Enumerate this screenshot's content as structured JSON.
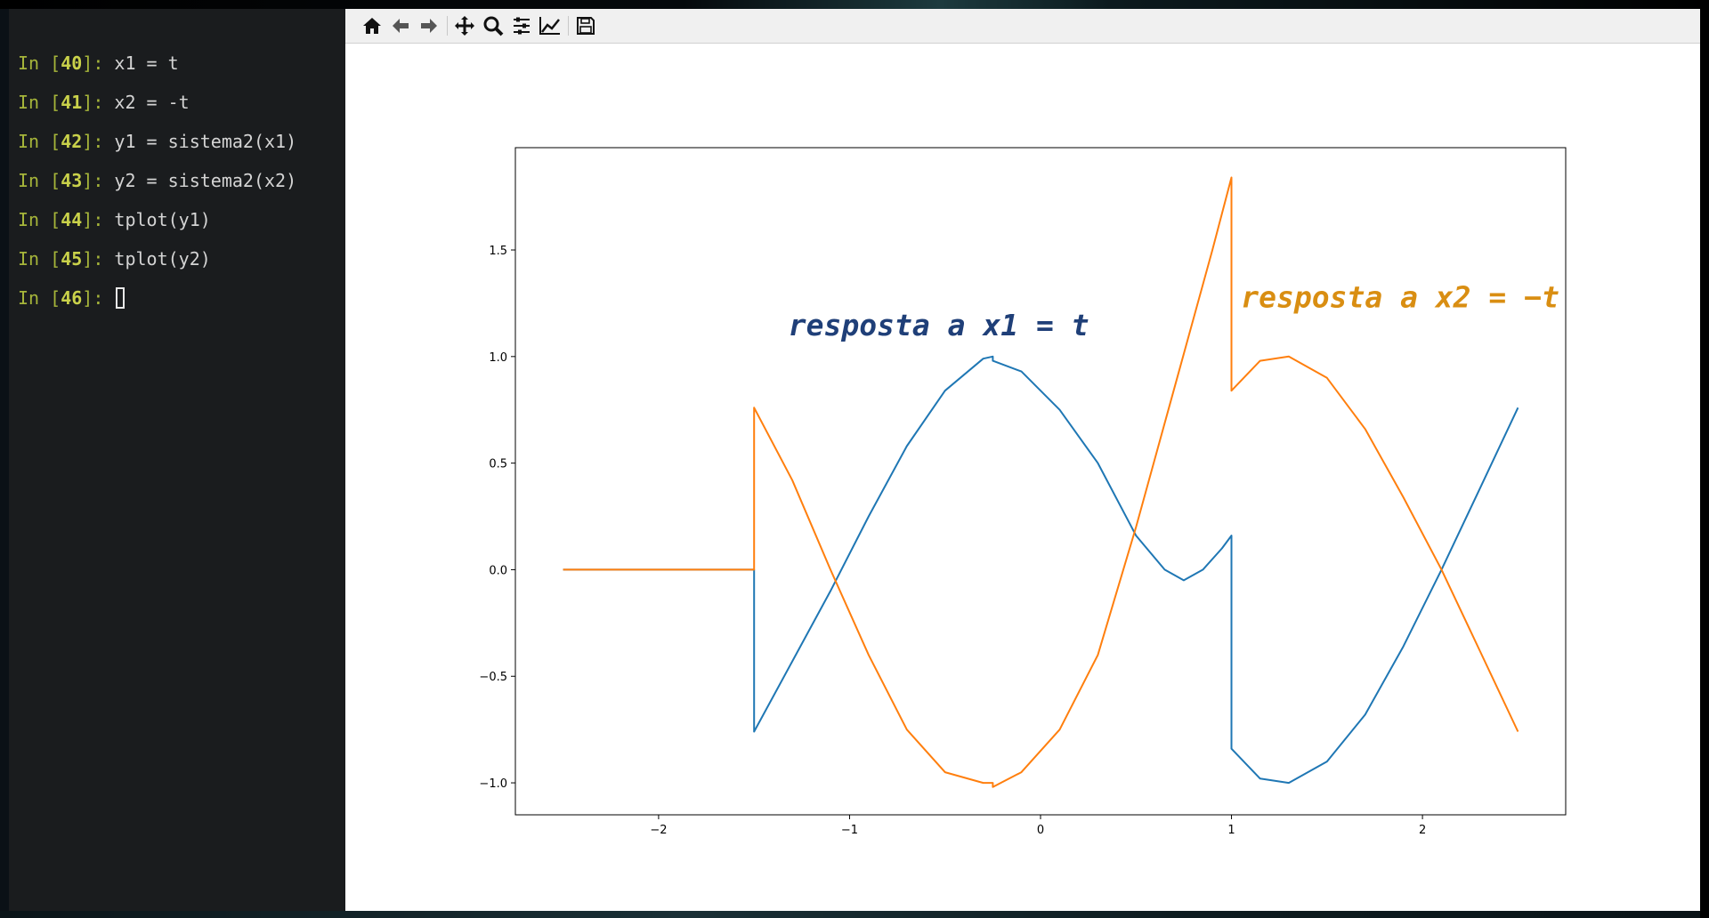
{
  "terminal": {
    "lines": [
      {
        "prompt": "In",
        "num": "40",
        "code": "x1 = t"
      },
      {
        "prompt": "In",
        "num": "41",
        "code": "x2 = -t"
      },
      {
        "prompt": "In",
        "num": "42",
        "code": "y1 = sistema2(x1)"
      },
      {
        "prompt": "In",
        "num": "43",
        "code": "y2 = sistema2(x2)"
      },
      {
        "prompt": "In",
        "num": "44",
        "code": "tplot(y1)"
      },
      {
        "prompt": "In",
        "num": "45",
        "code": "tplot(y2)"
      },
      {
        "prompt": "In",
        "num": "46",
        "code": ""
      }
    ]
  },
  "toolbar": {
    "buttons": [
      {
        "name": "home-icon",
        "title": "Home"
      },
      {
        "name": "back-icon",
        "title": "Back"
      },
      {
        "name": "forward-icon",
        "title": "Forward"
      },
      {
        "name": "pan-icon",
        "title": "Pan"
      },
      {
        "name": "zoom-icon",
        "title": "Zoom"
      },
      {
        "name": "subplots-icon",
        "title": "Subplots"
      },
      {
        "name": "customize-icon",
        "title": "Customize"
      },
      {
        "name": "save-icon",
        "title": "Save"
      }
    ]
  },
  "colors": {
    "series1": "#1f77b4",
    "series2": "#ff7f0e",
    "annotation1": "#1f3f78",
    "annotation2": "#d98e12",
    "terminal_bg": "#1a1c1e",
    "prompt": "#a6b53a"
  },
  "chart_data": {
    "type": "line",
    "title": "",
    "xlabel": "",
    "ylabel": "",
    "xlim": [
      -2.75,
      2.75
    ],
    "ylim": [
      -1.15,
      1.98
    ],
    "grid": false,
    "xticks": [
      -2,
      -1,
      0,
      1,
      2
    ],
    "xtick_labels": [
      "−2",
      "−1",
      "0",
      "1",
      "2"
    ],
    "yticks": [
      -1.0,
      -0.5,
      0.0,
      0.5,
      1.0,
      1.5
    ],
    "ytick_labels": [
      "−1.0",
      "−0.5",
      "0.0",
      "0.5",
      "1.0",
      "1.5"
    ],
    "series": [
      {
        "color": "#1f77b4",
        "x": [
          -2.5,
          -1.5,
          -1.5,
          -1.3,
          -1.1,
          -0.9,
          -0.7,
          -0.5,
          -0.3,
          -0.25,
          -0.25,
          -0.1,
          0.1,
          0.3,
          0.5,
          0.65,
          0.75,
          0.85,
          0.95,
          1.0,
          1.0,
          1.15,
          1.3,
          1.5,
          1.7,
          1.9,
          2.1,
          2.3,
          2.5
        ],
        "y": [
          0.0,
          0.0,
          -0.76,
          -0.43,
          -0.1,
          0.25,
          0.58,
          0.84,
          0.99,
          1.0,
          0.98,
          0.93,
          0.75,
          0.5,
          0.16,
          0.0,
          -0.05,
          0.0,
          0.1,
          0.16,
          -0.84,
          -0.98,
          -1.0,
          -0.9,
          -0.68,
          -0.36,
          0.0,
          0.38,
          0.76
        ]
      },
      {
        "color": "#ff7f0e",
        "x": [
          -2.5,
          -1.5,
          -1.5,
          -1.3,
          -1.1,
          -0.9,
          -0.7,
          -0.5,
          -0.3,
          -0.25,
          -0.25,
          -0.1,
          0.1,
          0.3,
          0.5,
          0.7,
          0.9,
          1.0,
          1.0,
          1.15,
          1.3,
          1.5,
          1.7,
          1.9,
          2.1,
          2.3,
          2.5
        ],
        "y": [
          0.0,
          0.0,
          0.76,
          0.42,
          0.0,
          -0.4,
          -0.75,
          -0.95,
          -1.0,
          -1.0,
          -1.02,
          -0.95,
          -0.75,
          -0.4,
          0.2,
          0.85,
          1.5,
          1.84,
          0.84,
          0.98,
          1.0,
          0.9,
          0.66,
          0.34,
          0.0,
          -0.38,
          -0.76
        ]
      }
    ],
    "annotations": [
      {
        "text": "resposta a x1 = t",
        "x": -1.32,
        "y": 1.1,
        "color": "#1f3f78"
      },
      {
        "text": "resposta a x2 = −t",
        "x": 1.05,
        "y": 1.23,
        "color": "#d98e12"
      }
    ]
  }
}
